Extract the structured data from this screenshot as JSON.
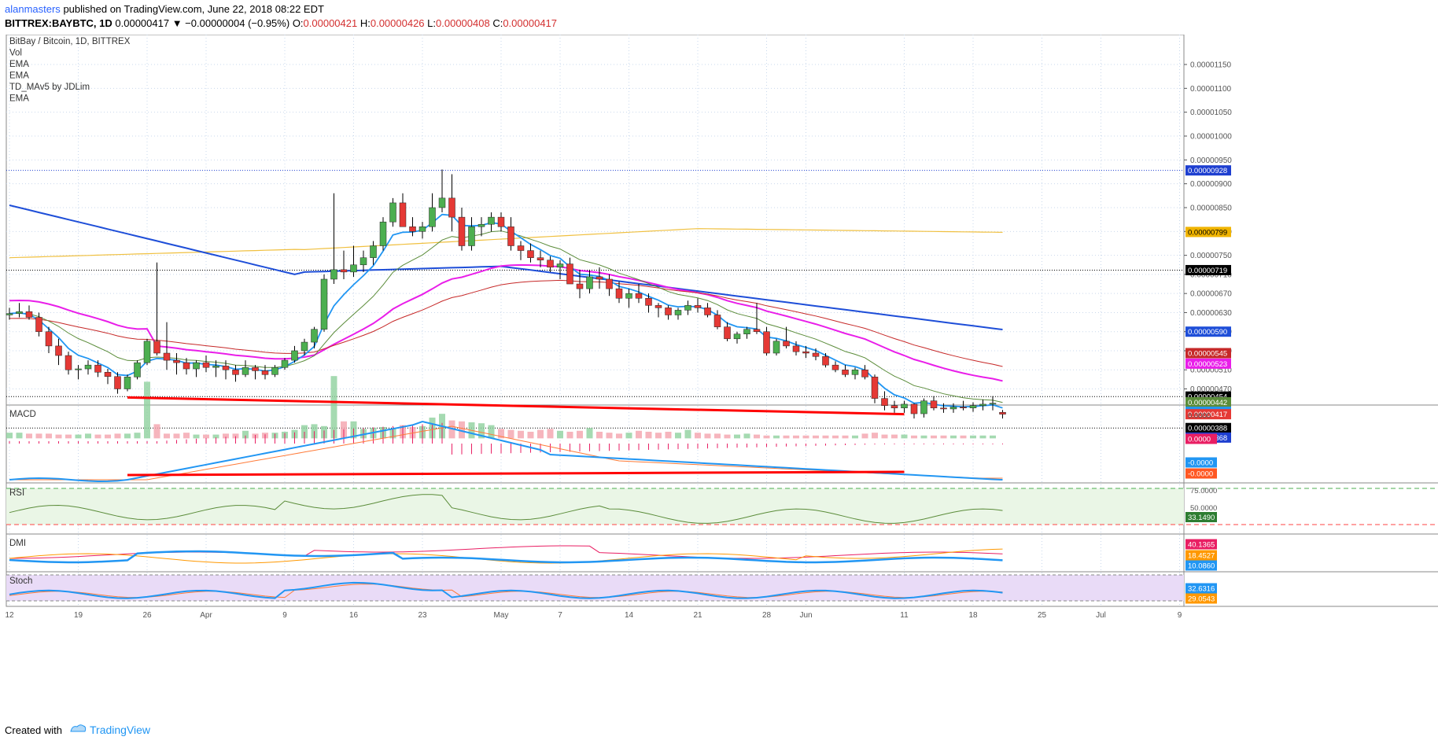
{
  "header": {
    "author": "alanmasters",
    "published": "published on TradingView.com, June 22, 2018 08:22 EDT",
    "symbol": "BITTREX:BAYBTC, 1D",
    "last": "0.00000417",
    "change": "▼ −0.00000004 (−0.95%)",
    "o_label": "O:",
    "o": "0.00000421",
    "h_label": "H:",
    "h": "0.00000426",
    "l_label": "L:",
    "l": "0.00000408",
    "c_label": "C:",
    "c": "0.00000417"
  },
  "legend": [
    "BitBay / Bitcoin, 1D, BITTREX",
    "Vol",
    "EMA",
    "EMA",
    "TD_MAv5 by JDLim",
    "EMA"
  ],
  "footer": {
    "created": "Created with",
    "brand": "TradingView"
  },
  "colors": {
    "up": "#4caf50",
    "down": "#e53935",
    "ema_fast": "#2196f3",
    "ema_green": "#5b8c3a",
    "ema_red": "#c62828",
    "magenta": "#e91ee9",
    "sma_blue": "#1e4ed8",
    "yellow": "#f0c040",
    "trend": "#ff0000",
    "axis": "#555555"
  },
  "chart_data": {
    "type": "candlestick",
    "x_tick_labels": [
      {
        "label": "12",
        "day": 0
      },
      {
        "label": "19",
        "day": 7
      },
      {
        "label": "26",
        "day": 14
      },
      {
        "label": "Apr",
        "day": 20
      },
      {
        "label": "9",
        "day": 28
      },
      {
        "label": "16",
        "day": 35
      },
      {
        "label": "23",
        "day": 42
      },
      {
        "label": "May",
        "day": 50
      },
      {
        "label": "7",
        "day": 56
      },
      {
        "label": "14",
        "day": 63
      },
      {
        "label": "21",
        "day": 70
      },
      {
        "label": "28",
        "day": 77
      },
      {
        "label": "Jun",
        "day": 81
      },
      {
        "label": "11",
        "day": 91
      },
      {
        "label": "18",
        "day": 98
      },
      {
        "label": "25",
        "day": 105
      },
      {
        "label": "Jul",
        "day": 111
      },
      {
        "label": "9",
        "day": 119
      }
    ],
    "y_ticks": [
      "0.00001150",
      "0.00001100",
      "0.00001050",
      "0.00001000",
      "0.00000950",
      "0.00000900",
      "0.00000850",
      "0.00000800",
      "0.00000750",
      "0.00000710",
      "0.00000670",
      "0.00000630",
      "0.00000590",
      "0.00000550",
      "0.00000510",
      "0.00000470"
    ],
    "y_tick_values": [
      1150,
      1100,
      1050,
      1000,
      950,
      900,
      850,
      800,
      750,
      710,
      670,
      630,
      590,
      550,
      510,
      470
    ],
    "price_tags": [
      {
        "label": "0.00000928",
        "value": 928,
        "color": "#1e3fd0"
      },
      {
        "label": "0.00000799",
        "value": 799,
        "color": "#f0b400"
      },
      {
        "label": "0.00000719",
        "value": 719,
        "color": "#000000"
      },
      {
        "label": "0.00000590",
        "value": 590,
        "color": "#1e4ed8"
      },
      {
        "label": "0.00000545",
        "value": 545,
        "color": "#c62828"
      },
      {
        "label": "0.00000523",
        "value": 523,
        "color": "#e91ee9"
      },
      {
        "label": "0.00000454",
        "value": 454,
        "color": "#000000"
      },
      {
        "label": "0.00000442",
        "value": 442,
        "color": "#5b8c3a"
      },
      {
        "label": "0.00000422",
        "value": 422,
        "color": "#2196f3"
      },
      {
        "label": "0.00000417",
        "value": 417,
        "color": "#e53935"
      },
      {
        "label": "0.00000388",
        "value": 388,
        "color": "#000000"
      },
      {
        "label": "0.00000368",
        "value": 368,
        "color": "#1e3fd0"
      }
    ],
    "ohlc_x1e8": [
      [
        625,
        640,
        615,
        628
      ],
      [
        628,
        650,
        620,
        632
      ],
      [
        632,
        645,
        615,
        620
      ],
      [
        620,
        630,
        580,
        590
      ],
      [
        590,
        600,
        545,
        560
      ],
      [
        560,
        575,
        520,
        540
      ],
      [
        540,
        548,
        500,
        510
      ],
      [
        510,
        520,
        490,
        512
      ],
      [
        512,
        530,
        500,
        520
      ],
      [
        520,
        530,
        495,
        505
      ],
      [
        505,
        512,
        480,
        496
      ],
      [
        496,
        505,
        460,
        470
      ],
      [
        470,
        500,
        465,
        495
      ],
      [
        495,
        530,
        490,
        525
      ],
      [
        525,
        575,
        520,
        570
      ],
      [
        570,
        735,
        540,
        545
      ],
      [
        545,
        610,
        510,
        530
      ],
      [
        530,
        545,
        500,
        525
      ],
      [
        525,
        535,
        500,
        512
      ],
      [
        512,
        530,
        495,
        525
      ],
      [
        525,
        540,
        505,
        515
      ],
      [
        515,
        530,
        495,
        518
      ],
      [
        518,
        530,
        490,
        510
      ],
      [
        510,
        520,
        485,
        500
      ],
      [
        500,
        530,
        495,
        515
      ],
      [
        515,
        520,
        490,
        508
      ],
      [
        508,
        520,
        490,
        500
      ],
      [
        500,
        520,
        495,
        515
      ],
      [
        515,
        535,
        510,
        530
      ],
      [
        530,
        560,
        525,
        550
      ],
      [
        550,
        575,
        540,
        568
      ],
      [
        568,
        600,
        555,
        595
      ],
      [
        595,
        710,
        590,
        700
      ],
      [
        700,
        880,
        690,
        720
      ],
      [
        720,
        760,
        700,
        715
      ],
      [
        715,
        770,
        705,
        730
      ],
      [
        730,
        760,
        715,
        745
      ],
      [
        745,
        780,
        730,
        770
      ],
      [
        770,
        830,
        760,
        820
      ],
      [
        820,
        870,
        810,
        860
      ],
      [
        860,
        880,
        810,
        810
      ],
      [
        810,
        830,
        790,
        800
      ],
      [
        800,
        820,
        785,
        810
      ],
      [
        810,
        880,
        800,
        850
      ],
      [
        850,
        930,
        840,
        870
      ],
      [
        870,
        920,
        800,
        830
      ],
      [
        830,
        850,
        760,
        770
      ],
      [
        770,
        830,
        760,
        810
      ],
      [
        810,
        830,
        790,
        815
      ],
      [
        815,
        840,
        800,
        830
      ],
      [
        830,
        840,
        800,
        810
      ],
      [
        810,
        830,
        760,
        770
      ],
      [
        770,
        780,
        740,
        760
      ],
      [
        760,
        775,
        735,
        745
      ],
      [
        745,
        760,
        725,
        740
      ],
      [
        740,
        748,
        715,
        725
      ],
      [
        725,
        740,
        700,
        732
      ],
      [
        732,
        745,
        690,
        690
      ],
      [
        690,
        720,
        660,
        680
      ],
      [
        680,
        720,
        670,
        705
      ],
      [
        705,
        725,
        680,
        700
      ],
      [
        700,
        710,
        665,
        680
      ],
      [
        680,
        695,
        650,
        660
      ],
      [
        660,
        680,
        640,
        670
      ],
      [
        670,
        690,
        650,
        660
      ],
      [
        660,
        670,
        630,
        645
      ],
      [
        645,
        650,
        620,
        640
      ],
      [
        640,
        645,
        615,
        625
      ],
      [
        625,
        640,
        615,
        635
      ],
      [
        635,
        655,
        625,
        645
      ],
      [
        645,
        660,
        630,
        640
      ],
      [
        640,
        650,
        620,
        625
      ],
      [
        625,
        635,
        595,
        600
      ],
      [
        600,
        610,
        570,
        575
      ],
      [
        575,
        590,
        565,
        585
      ],
      [
        585,
        600,
        575,
        595
      ],
      [
        595,
        650,
        585,
        590
      ],
      [
        590,
        600,
        540,
        545
      ],
      [
        545,
        575,
        540,
        570
      ],
      [
        570,
        600,
        555,
        560
      ],
      [
        560,
        570,
        540,
        548
      ],
      [
        548,
        560,
        535,
        545
      ],
      [
        545,
        555,
        530,
        538
      ],
      [
        538,
        545,
        515,
        520
      ],
      [
        520,
        528,
        505,
        510
      ],
      [
        510,
        520,
        495,
        500
      ],
      [
        500,
        515,
        490,
        510
      ],
      [
        510,
        520,
        490,
        495
      ],
      [
        495,
        500,
        440,
        450
      ],
      [
        450,
        465,
        425,
        435
      ],
      [
        435,
        445,
        420,
        430
      ],
      [
        430,
        445,
        420,
        438
      ],
      [
        438,
        440,
        408,
        418
      ],
      [
        418,
        450,
        410,
        445
      ],
      [
        445,
        455,
        425,
        430
      ],
      [
        430,
        440,
        420,
        428
      ],
      [
        428,
        440,
        420,
        432
      ],
      [
        432,
        445,
        425,
        430
      ],
      [
        430,
        442,
        422,
        435
      ],
      [
        435,
        448,
        425,
        438
      ],
      [
        438,
        455,
        425,
        440
      ],
      [
        421,
        426,
        408,
        417
      ]
    ],
    "volume_pct": [
      6,
      6,
      5,
      5,
      5,
      4,
      4,
      4,
      5,
      4,
      4,
      5,
      5,
      6,
      60,
      15,
      5,
      5,
      6,
      4,
      4,
      4,
      5,
      5,
      8,
      5,
      6,
      6,
      7,
      9,
      14,
      15,
      13,
      66,
      18,
      18,
      10,
      11,
      12,
      10,
      14,
      12,
      13,
      22,
      26,
      19,
      18,
      17,
      16,
      14,
      10,
      9,
      8,
      7,
      9,
      10,
      8,
      7,
      8,
      11,
      7,
      6,
      5,
      6,
      8,
      7,
      6,
      7,
      6,
      9,
      6,
      5,
      5,
      4,
      4,
      5,
      4,
      3,
      3,
      3,
      3,
      3,
      3,
      3,
      3,
      3,
      3,
      5,
      6,
      4,
      4,
      4,
      3,
      3,
      3,
      3,
      3,
      3,
      3,
      3,
      3
    ],
    "indicators": [
      {
        "name": "MACD",
        "label": "MACD",
        "tags": [
          {
            "label": "0.0000",
            "color": "none"
          },
          {
            "label": "0.0000",
            "color": "#e91e63"
          },
          {
            "label": "-0.0000",
            "color": "#2196f3"
          },
          {
            "label": "-0.0000",
            "color": "#ff5722"
          }
        ]
      },
      {
        "name": "RSI",
        "label": "RSI",
        "ticks": [
          "75.0000",
          "50.0000"
        ],
        "value_tag": "33.1490"
      },
      {
        "name": "DMI",
        "label": "DMI",
        "tags": [
          {
            "label": "40.1365",
            "color": "#e91e63"
          },
          {
            "label": "18.4527",
            "color": "#ff9800"
          },
          {
            "label": "10.0860",
            "color": "#2196f3"
          }
        ]
      },
      {
        "name": "Stoch",
        "label": "Stoch",
        "tags": [
          {
            "label": "32.6316",
            "color": "#2196f3"
          },
          {
            "label": "29.0543",
            "color": "#ff9800"
          }
        ]
      }
    ]
  }
}
